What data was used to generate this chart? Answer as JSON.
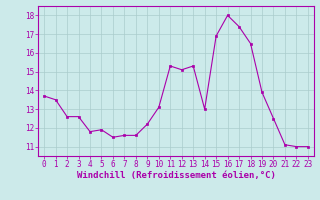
{
  "x": [
    0,
    1,
    2,
    3,
    4,
    5,
    6,
    7,
    8,
    9,
    10,
    11,
    12,
    13,
    14,
    15,
    16,
    17,
    18,
    19,
    20,
    21,
    22,
    23
  ],
  "y": [
    13.7,
    13.5,
    12.6,
    12.6,
    11.8,
    11.9,
    11.5,
    11.6,
    11.6,
    12.2,
    13.1,
    15.3,
    15.1,
    15.3,
    13.0,
    16.9,
    18.0,
    17.4,
    16.5,
    13.9,
    12.5,
    11.1,
    11.0,
    11.0
  ],
  "line_color": "#aa00aa",
  "marker_color": "#aa00aa",
  "bg_color": "#cceaea",
  "grid_color": "#aacccc",
  "xlabel": "Windchill (Refroidissement éolien,°C)",
  "xlim": [
    -0.5,
    23.5
  ],
  "ylim": [
    10.5,
    18.5
  ],
  "yticks": [
    11,
    12,
    13,
    14,
    15,
    16,
    17,
    18
  ],
  "xticks": [
    0,
    1,
    2,
    3,
    4,
    5,
    6,
    7,
    8,
    9,
    10,
    11,
    12,
    13,
    14,
    15,
    16,
    17,
    18,
    19,
    20,
    21,
    22,
    23
  ],
  "xtick_labels": [
    "0",
    "1",
    "2",
    "3",
    "4",
    "5",
    "6",
    "7",
    "8",
    "9",
    "10",
    "11",
    "12",
    "13",
    "14",
    "15",
    "16",
    "17",
    "18",
    "19",
    "20",
    "21",
    "22",
    "23"
  ],
  "ytick_labels": [
    "11",
    "12",
    "13",
    "14",
    "15",
    "16",
    "17",
    "18"
  ],
  "font_color": "#aa00aa",
  "axis_color": "#aa00aa",
  "xlabel_fontsize": 6.5,
  "tick_fontsize": 5.5
}
